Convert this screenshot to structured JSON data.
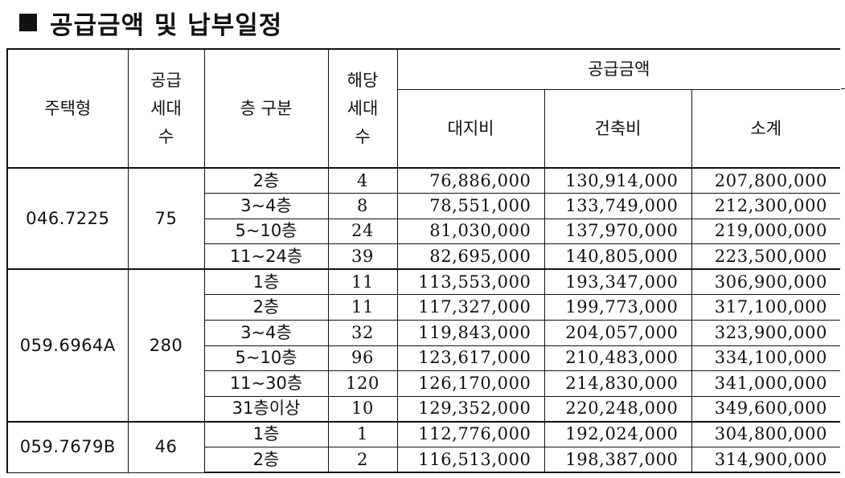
{
  "title": "공급금액 및 납부일정",
  "table": {
    "headers": {
      "type": "주택형",
      "supply_units": [
        "공급",
        "세대",
        "수"
      ],
      "floor": "층 구분",
      "units": [
        "해당",
        "세대",
        "수"
      ],
      "supply_amount": "공급금액",
      "land": "대지비",
      "building": "건축비",
      "subtotal": "소계"
    },
    "groups": [
      {
        "type": "046.7225",
        "supply": "75",
        "rows": [
          {
            "floor": "2층",
            "units": "4",
            "land": "76,886,000",
            "building": "130,914,000",
            "subtotal": "207,800,000"
          },
          {
            "floor": "3~4층",
            "units": "8",
            "land": "78,551,000",
            "building": "133,749,000",
            "subtotal": "212,300,000"
          },
          {
            "floor": "5~10층",
            "units": "24",
            "land": "81,030,000",
            "building": "137,970,000",
            "subtotal": "219,000,000"
          },
          {
            "floor": "11~24층",
            "units": "39",
            "land": "82,695,000",
            "building": "140,805,000",
            "subtotal": "223,500,000"
          }
        ]
      },
      {
        "type": "059.6964A",
        "supply": "280",
        "rows": [
          {
            "floor": "1층",
            "units": "11",
            "land": "113,553,000",
            "building": "193,347,000",
            "subtotal": "306,900,000"
          },
          {
            "floor": "2층",
            "units": "11",
            "land": "117,327,000",
            "building": "199,773,000",
            "subtotal": "317,100,000"
          },
          {
            "floor": "3~4층",
            "units": "32",
            "land": "119,843,000",
            "building": "204,057,000",
            "subtotal": "323,900,000"
          },
          {
            "floor": "5~10층",
            "units": "96",
            "land": "123,617,000",
            "building": "210,483,000",
            "subtotal": "334,100,000"
          },
          {
            "floor": "11~30층",
            "units": "120",
            "land": "126,170,000",
            "building": "214,830,000",
            "subtotal": "341,000,000"
          },
          {
            "floor": "31층이상",
            "units": "10",
            "land": "129,352,000",
            "building": "220,248,000",
            "subtotal": "349,600,000"
          }
        ]
      },
      {
        "type": "059.7679B",
        "supply": "46",
        "rows": [
          {
            "floor": "1층",
            "units": "1",
            "land": "112,776,000",
            "building": "192,024,000",
            "subtotal": "304,800,000"
          },
          {
            "floor": "2층",
            "units": "2",
            "land": "116,513,000",
            "building": "198,387,000",
            "subtotal": "314,900,000"
          }
        ]
      }
    ]
  }
}
